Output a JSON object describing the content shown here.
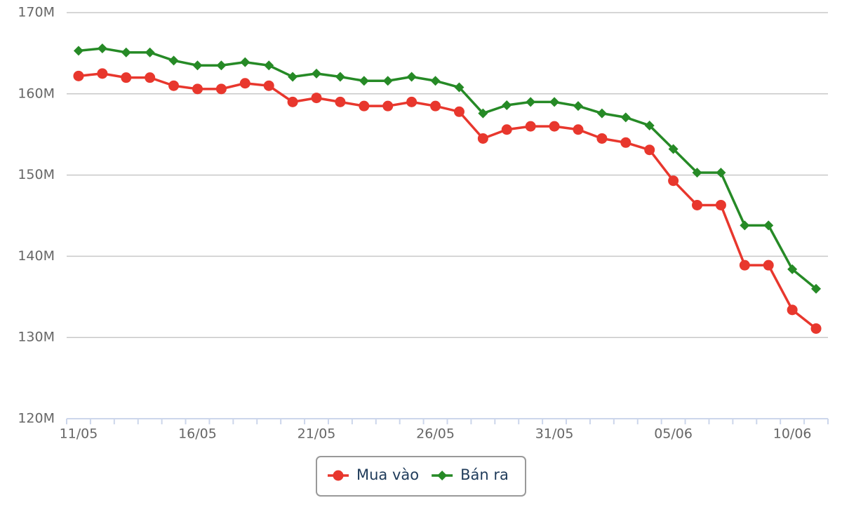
{
  "chart_data": {
    "type": "line",
    "categories": [
      "11/05",
      null,
      null,
      null,
      null,
      "16/05",
      null,
      null,
      null,
      null,
      "21/05",
      null,
      null,
      null,
      null,
      "26/05",
      null,
      null,
      null,
      null,
      "31/05",
      null,
      null,
      null,
      null,
      "05/06",
      null,
      null,
      null,
      null,
      "10/06",
      null
    ],
    "series": [
      {
        "name": "Mua vào",
        "color": "#e8372d",
        "marker": "circle",
        "values": [
          162.2,
          162.5,
          162.0,
          162.0,
          161.0,
          160.6,
          160.6,
          161.3,
          161.0,
          159.0,
          159.5,
          159.0,
          158.5,
          158.5,
          159.0,
          158.5,
          157.8,
          154.5,
          155.6,
          156.0,
          156.0,
          155.6,
          154.5,
          154.0,
          153.1,
          149.3,
          146.3,
          146.3,
          138.9,
          138.9,
          133.4,
          131.1
        ]
      },
      {
        "name": "Bán ra",
        "color": "#268a26",
        "marker": "diamond",
        "values": [
          165.3,
          165.6,
          165.1,
          165.1,
          164.1,
          163.5,
          163.5,
          163.9,
          163.5,
          162.1,
          162.5,
          162.1,
          161.6,
          161.6,
          162.1,
          161.6,
          160.8,
          157.6,
          158.6,
          159.0,
          159.0,
          158.5,
          157.6,
          157.1,
          156.1,
          153.2,
          150.3,
          150.3,
          143.8,
          143.8,
          138.4,
          136.0
        ]
      }
    ],
    "ylim": [
      120,
      170
    ],
    "yticks": [
      {
        "value": 120,
        "label": "120M"
      },
      {
        "value": 130,
        "label": "130M"
      },
      {
        "value": 140,
        "label": "140M"
      },
      {
        "value": 150,
        "label": "150M"
      },
      {
        "value": 160,
        "label": "160M"
      },
      {
        "value": 170,
        "label": "170M"
      }
    ],
    "grid": true,
    "legend": "bottom"
  }
}
